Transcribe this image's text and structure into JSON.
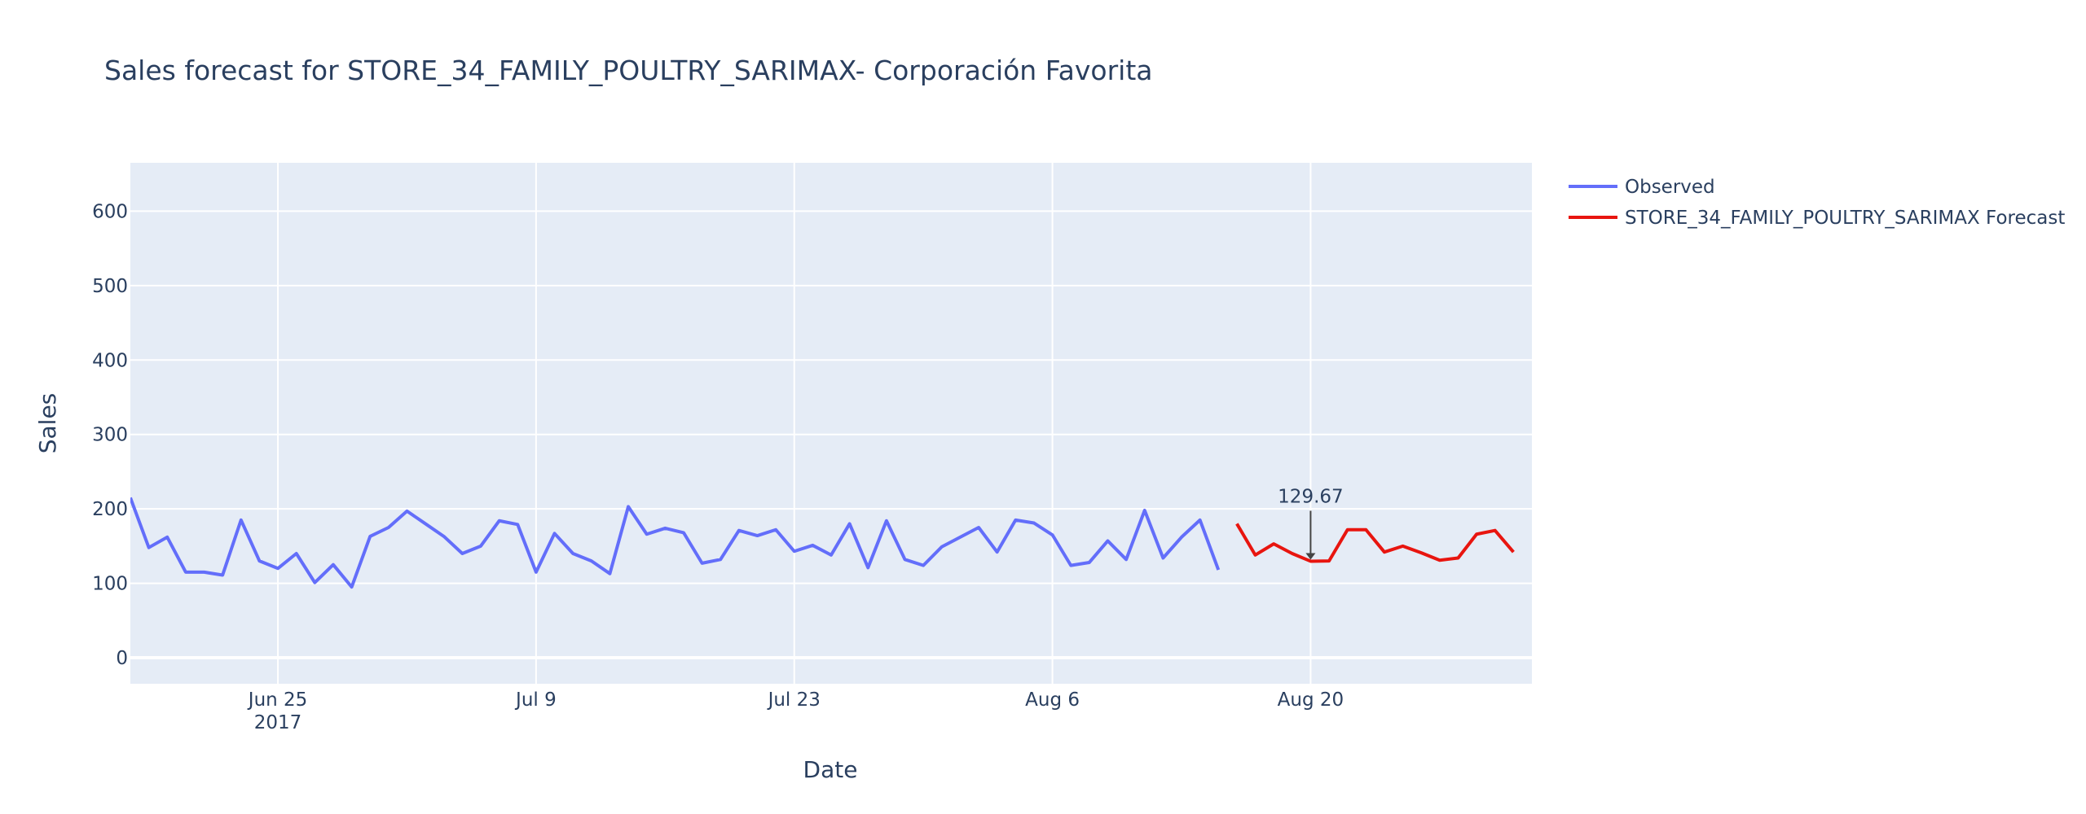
{
  "chart_data": {
    "type": "line",
    "title": "Sales forecast for STORE_34_FAMILY_POULTRY_SARIMAX- Corporación Favorita",
    "xlabel": "Date",
    "ylabel": "Sales",
    "xlim": [
      "2017-06-17",
      "2017-09-01"
    ],
    "ylim": [
      -35,
      665
    ],
    "y_ticks": [
      0,
      100,
      200,
      300,
      400,
      500,
      600
    ],
    "x_ticks": [
      {
        "date": "2017-06-25",
        "label": "Jun 25",
        "sublabel": "2017"
      },
      {
        "date": "2017-07-09",
        "label": "Jul 9",
        "sublabel": ""
      },
      {
        "date": "2017-07-23",
        "label": "Jul 23",
        "sublabel": ""
      },
      {
        "date": "2017-08-06",
        "label": "Aug 6",
        "sublabel": ""
      },
      {
        "date": "2017-08-20",
        "label": "Aug 20",
        "sublabel": ""
      }
    ],
    "grid": true,
    "legend_position": "top-right",
    "series": [
      {
        "name": "Observed",
        "color": "#636efa",
        "start": "2017-06-17",
        "values": [
          215,
          148,
          162,
          115,
          115,
          111,
          185,
          130,
          120,
          140,
          101,
          125,
          95,
          163,
          175,
          197,
          180,
          163,
          140,
          150,
          184,
          179,
          115,
          167,
          140,
          130,
          113,
          203,
          166,
          174,
          168,
          127,
          132,
          171,
          164,
          172,
          143,
          151,
          138,
          180,
          121,
          184,
          132,
          124,
          149,
          162,
          175,
          142,
          185,
          181,
          165,
          124,
          128,
          157,
          132,
          198,
          134,
          162,
          185,
          118
        ]
      },
      {
        "name": "STORE_34_FAMILY_POULTRY_SARIMAX Forecast",
        "color": "#e8150f",
        "start": "2017-08-16",
        "values": [
          180,
          138,
          153,
          140,
          129.67,
          130,
          172,
          172,
          142,
          150,
          141,
          131,
          134,
          166,
          171,
          142
        ]
      }
    ],
    "annotations": [
      {
        "text": "129.67",
        "date": "2017-08-20",
        "value": 129.67
      }
    ]
  }
}
